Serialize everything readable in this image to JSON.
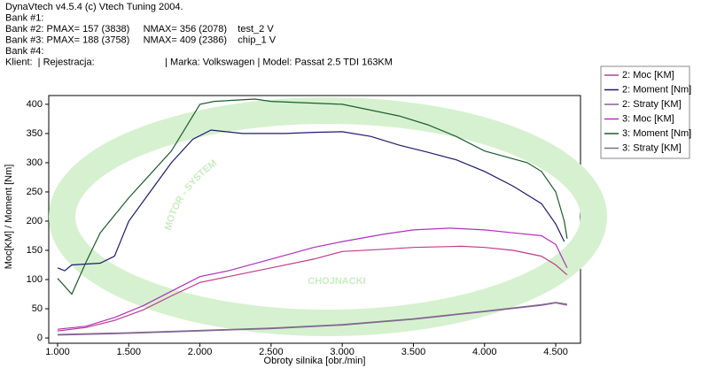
{
  "chart_data": {
    "type": "line",
    "header": [
      "DynaVtech v4.5.4 (c) Vtech Tuning 2004.",
      "Bank #1:",
      "Bank #2: PMAX= 157 (3838)     NMAX= 356 (2078)    test_2 V",
      "Bank #3: PMAX= 188 (3758)     NMAX= 409 (2386)    chip_1 V",
      "Bank #4:",
      "Klient:  | Rejestracja:                          | Marka: Volkswagen | Model: Passat 2.5 TDI 163KM"
    ],
    "watermark": {
      "arc_text": "MOTOR - SYSTEM",
      "text": "CHOJNACKI"
    },
    "x_label": "Obroty silnika [obr./min]",
    "y_label": "Moc[KM] / Moment [Nm]",
    "xlim": [
      938,
      4674
    ],
    "xticks": [
      {
        "value": 1000,
        "label": "1.000"
      },
      {
        "value": 1500,
        "label": "1.500"
      },
      {
        "value": 2000,
        "label": "2.000"
      },
      {
        "value": 2500,
        "label": "2.500"
      },
      {
        "value": 3000,
        "label": "3.000"
      },
      {
        "value": 3500,
        "label": "3.500"
      },
      {
        "value": 4000,
        "label": "4.000"
      },
      {
        "value": 4500,
        "label": "4.500"
      }
    ],
    "ylim": [
      -9,
      415
    ],
    "yticks": [
      0,
      50,
      100,
      150,
      200,
      250,
      300,
      350,
      400
    ],
    "legend": "upper right",
    "series": [
      {
        "name": "2: Moc [KM]",
        "color": "#c03c8c",
        "x": [
          1000,
          1200,
          1400,
          1600,
          1800,
          2000,
          2200,
          2500,
          2800,
          3000,
          3300,
          3500,
          3838,
          4000,
          4200,
          4400,
          4500,
          4580
        ],
        "values": [
          12,
          18,
          30,
          48,
          72,
          95,
          105,
          120,
          135,
          148,
          152,
          155,
          157,
          155,
          150,
          140,
          125,
          108
        ]
      },
      {
        "name": "2: Moment [Nm]",
        "color": "#1c1c6c",
        "x": [
          1000,
          1050,
          1100,
          1300,
          1400,
          1500,
          1650,
          1800,
          1950,
          2078,
          2300,
          2600,
          2800,
          3000,
          3200,
          3400,
          3600,
          3800,
          4000,
          4200,
          4400,
          4500,
          4560
        ],
        "values": [
          120,
          115,
          125,
          128,
          140,
          200,
          250,
          300,
          340,
          356,
          350,
          350,
          352,
          353,
          345,
          330,
          318,
          305,
          285,
          260,
          230,
          195,
          165
        ]
      },
      {
        "name": "2: Straty [KM]",
        "color": "#8c5c9c",
        "x": [
          1000,
          1500,
          2000,
          2500,
          3000,
          3500,
          4000,
          4400,
          4500,
          4580
        ],
        "values": [
          5,
          8,
          12,
          16,
          22,
          32,
          45,
          56,
          60,
          56
        ]
      },
      {
        "name": "3: Moc [KM]",
        "color": "#b030c0",
        "x": [
          1000,
          1200,
          1400,
          1600,
          1800,
          2000,
          2200,
          2500,
          2800,
          3000,
          3300,
          3500,
          3758,
          4000,
          4200,
          4400,
          4500,
          4580
        ],
        "values": [
          15,
          20,
          35,
          55,
          80,
          105,
          115,
          135,
          155,
          165,
          178,
          185,
          188,
          185,
          180,
          175,
          160,
          120
        ]
      },
      {
        "name": "3: Moment [Nm]",
        "color": "#1c5c2c",
        "x": [
          1000,
          1100,
          1200,
          1300,
          1400,
          1500,
          1650,
          1800,
          1900,
          2000,
          2100,
          2386,
          2500,
          3000,
          3200,
          3400,
          3600,
          3800,
          4000,
          4300,
          4400,
          4500,
          4560,
          4580
        ],
        "values": [
          102,
          75,
          130,
          180,
          210,
          240,
          280,
          320,
          360,
          400,
          405,
          409,
          405,
          400,
          390,
          380,
          365,
          345,
          320,
          300,
          285,
          250,
          200,
          170
        ]
      },
      {
        "name": "3: Straty [KM]",
        "color": "#7c6c8c",
        "x": [
          1000,
          1500,
          2000,
          2500,
          3000,
          3500,
          4000,
          4400,
          4500,
          4580
        ],
        "values": [
          6,
          9,
          13,
          17,
          23,
          33,
          46,
          57,
          61,
          58
        ]
      }
    ]
  }
}
